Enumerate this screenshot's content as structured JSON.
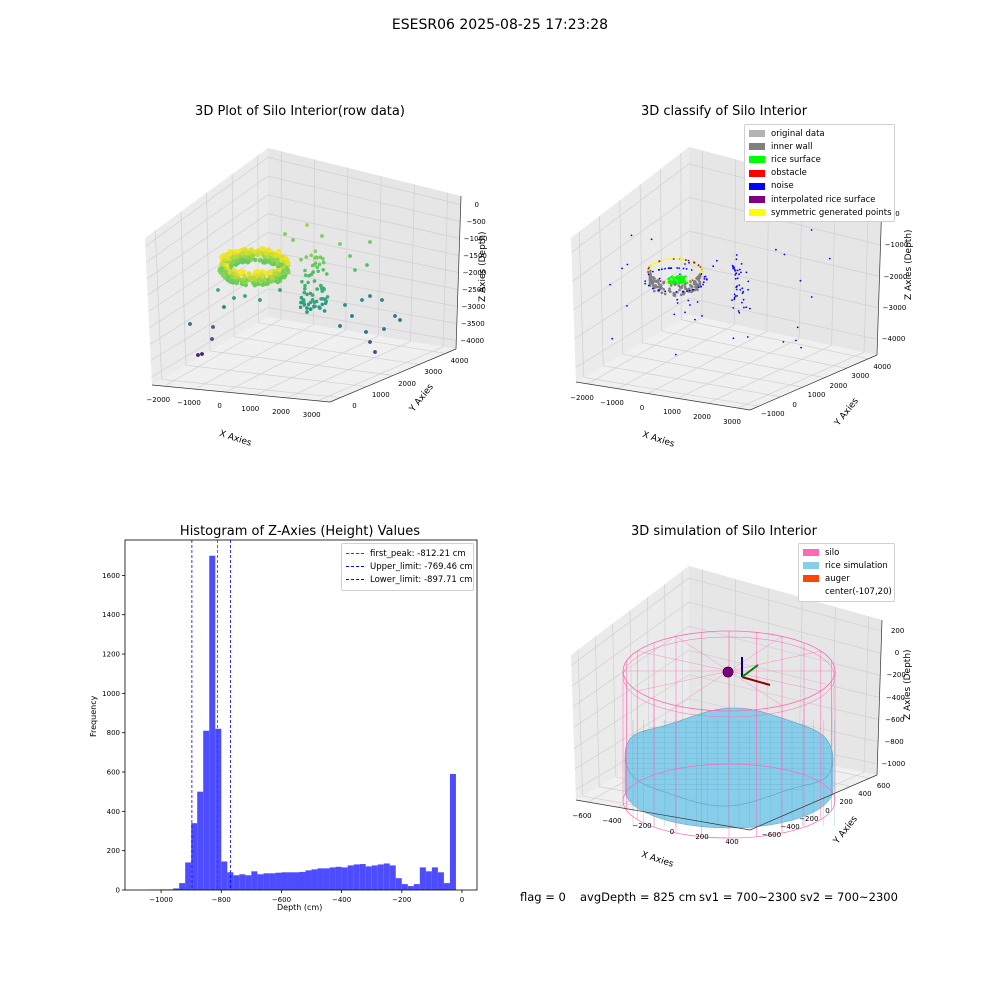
{
  "figure": {
    "suptitle": "ESESR06 2025-08-25 17:23:28"
  },
  "status": {
    "flag": "flag = 0",
    "avg": "avgDepth = 825 cm",
    "sv1": "sv1 = 700~2300",
    "sv2": "sv2 = 700~2300"
  },
  "colors": {
    "original": "#b3b3b3",
    "inner_wall": "#808080",
    "rice_surface": "#00ff00",
    "obstacle": "#ff0000",
    "noise": "#0000ff",
    "interp": "#800080",
    "symmetric": "#ffff00",
    "silo": "#ff69b4",
    "rice_sim": "#87ceeb",
    "auger": "#ff4500",
    "hist": "#4d4dff"
  },
  "chart_data": [
    {
      "type": "scatter3d",
      "title": "3D Plot of Silo Interior(row data)",
      "xlabel": "X Axies",
      "ylabel": "Y Axies",
      "zlabel": "Z Axies (Depth)",
      "xticks": [
        "−2000",
        "−1000",
        "0",
        "1000",
        "2000",
        "3000"
      ],
      "yticks": [
        "0",
        "1000",
        "2000",
        "3000",
        "4000"
      ],
      "zticks": [
        "0",
        "−500",
        "−1000",
        "−1500",
        "−2000",
        "−2500",
        "−3000",
        "−3500",
        "−4000"
      ],
      "colormap": "viridis",
      "point_groups": [
        {
          "name": "ring",
          "x_range": [
            -400,
            400
          ],
          "y_range": [
            300,
            1300
          ],
          "z_range": [
            -1300,
            -600
          ],
          "count": 400
        },
        {
          "name": "cluster",
          "x_range": [
            1000,
            2200
          ],
          "y_range": [
            400,
            3800
          ],
          "z_range": [
            -3200,
            -1200
          ],
          "count": 90
        },
        {
          "name": "scattered",
          "x_range": [
            -2200,
            3200
          ],
          "y_range": [
            0,
            4000
          ],
          "z_range": [
            -4000,
            -500
          ],
          "count": 40
        }
      ]
    },
    {
      "type": "scatter3d",
      "title": "3D classify of Silo Interior",
      "xlabel": "X Axies",
      "ylabel": "Y Axies",
      "zlabel": "Z Axies (Depth)",
      "xticks": [
        "−2000",
        "−1000",
        "0",
        "1000",
        "2000",
        "3000"
      ],
      "yticks": [
        "−1000",
        "0",
        "1000",
        "2000",
        "3000",
        "4000"
      ],
      "zticks": [
        "0",
        "−1000",
        "−2000",
        "−3000",
        "−4000"
      ],
      "legend": [
        "original data",
        "inner wall",
        "rice surface",
        "obstacle",
        "noise",
        "interpolated rice surface",
        "symmetric generated points"
      ],
      "legend_loc": "upper right"
    },
    {
      "type": "bar",
      "title": "Histogram of Z-Axies (Height) Values",
      "xlabel": "Depth (cm)",
      "ylabel": "Frequency",
      "xlim": [
        -1120,
        50
      ],
      "ylim": [
        0,
        1780
      ],
      "xticks": [
        -1000,
        -800,
        -600,
        -400,
        -200,
        0
      ],
      "yticks": [
        0,
        200,
        400,
        600,
        800,
        1000,
        1200,
        1400,
        1600
      ],
      "bin_width": 20,
      "bins": [
        [
          -1040,
          2
        ],
        [
          -1020,
          2
        ],
        [
          -1000,
          3
        ],
        [
          -980,
          3
        ],
        [
          -960,
          8
        ],
        [
          -940,
          35
        ],
        [
          -920,
          140
        ],
        [
          -900,
          340
        ],
        [
          -880,
          500
        ],
        [
          -860,
          810
        ],
        [
          -840,
          1700
        ],
        [
          -820,
          820
        ],
        [
          -800,
          145
        ],
        [
          -780,
          90
        ],
        [
          -760,
          75
        ],
        [
          -740,
          80
        ],
        [
          -720,
          75
        ],
        [
          -700,
          95
        ],
        [
          -680,
          80
        ],
        [
          -660,
          85
        ],
        [
          -640,
          85
        ],
        [
          -620,
          88
        ],
        [
          -600,
          90
        ],
        [
          -580,
          90
        ],
        [
          -560,
          90
        ],
        [
          -540,
          92
        ],
        [
          -520,
          100
        ],
        [
          -500,
          105
        ],
        [
          -480,
          110
        ],
        [
          -460,
          110
        ],
        [
          -440,
          115
        ],
        [
          -420,
          118
        ],
        [
          -400,
          115
        ],
        [
          -380,
          125
        ],
        [
          -360,
          130
        ],
        [
          -340,
          132
        ],
        [
          -320,
          120
        ],
        [
          -300,
          125
        ],
        [
          -280,
          130
        ],
        [
          -260,
          135
        ],
        [
          -240,
          125
        ],
        [
          -220,
          60
        ],
        [
          -200,
          30
        ],
        [
          -180,
          20
        ],
        [
          -160,
          30
        ],
        [
          -140,
          115
        ],
        [
          -120,
          95
        ],
        [
          -100,
          115
        ],
        [
          -80,
          90
        ],
        [
          -60,
          35
        ],
        [
          -40,
          590
        ]
      ],
      "vlines": [
        {
          "name": "first_peak: -812.21 cm",
          "x": -812.21,
          "color": "#ff0000"
        },
        {
          "name": "Upper_limit: -769.46 cm",
          "x": -769.46,
          "color": "#0000ff"
        },
        {
          "name": "Lower_limit: -897.71 cm",
          "x": -897.71,
          "color": "#0000ff"
        }
      ],
      "legend_loc": "upper right"
    },
    {
      "type": "surface3d",
      "title": "3D simulation of Silo Interior",
      "xlabel": "X Axies",
      "ylabel": "Y Axies",
      "zlabel": "Z Axies (Depth)",
      "xticks": [
        "−600",
        "−400",
        "−200",
        "0",
        "200",
        "400"
      ],
      "yticks": [
        "−600",
        "−400",
        "−200",
        "0",
        "200",
        "400",
        "600"
      ],
      "zticks": [
        "200",
        "0",
        "−200",
        "−400",
        "−600",
        "−800",
        "−1000"
      ],
      "legend": [
        "silo",
        "rice simulation",
        "auger",
        "center(-107,20)"
      ],
      "legend_loc": "upper right"
    }
  ]
}
